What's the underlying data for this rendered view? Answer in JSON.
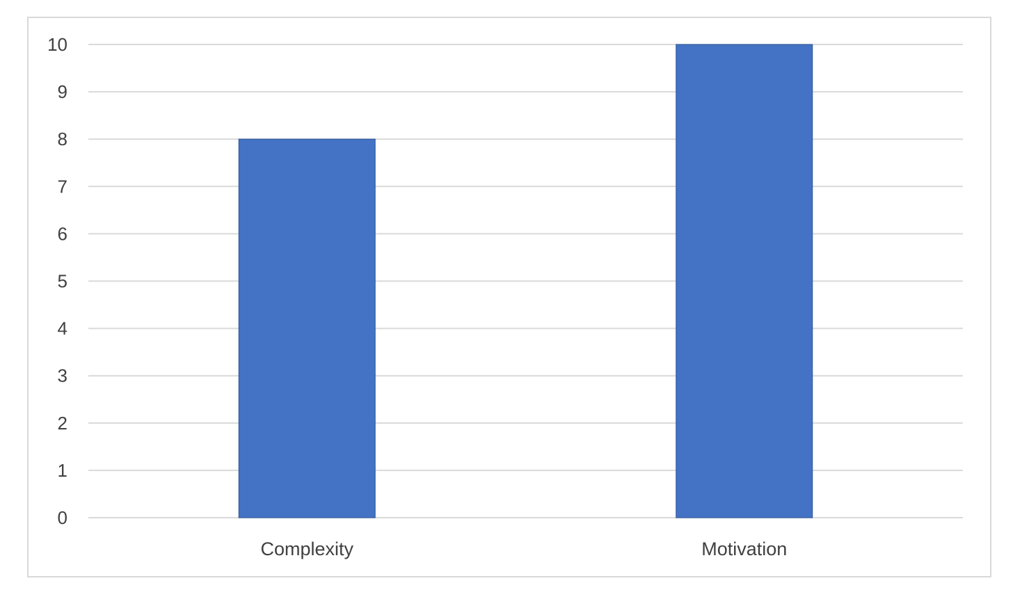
{
  "chart_data": {
    "type": "bar",
    "categories": [
      "Complexity",
      "Motivation"
    ],
    "values": [
      8,
      10
    ],
    "title": "",
    "xlabel": "",
    "ylabel": "",
    "ylim": [
      0,
      10
    ],
    "yticks": [
      0,
      1,
      2,
      3,
      4,
      5,
      6,
      7,
      8,
      9,
      10
    ],
    "grid": true,
    "legend": "none",
    "colors": {
      "bar": "#4472c4",
      "bar_edge": "#2f5597",
      "gridline": "#d9d9d9",
      "frame": "#d9d9d9",
      "text": "#404040"
    }
  }
}
